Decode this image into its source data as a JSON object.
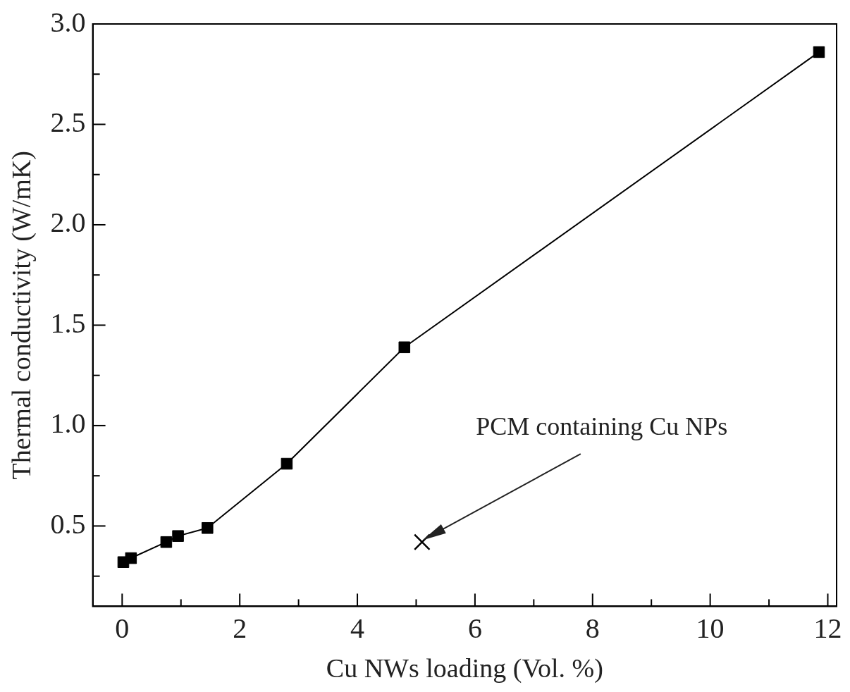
{
  "chart_data": {
    "type": "line",
    "xlabel": "Cu NWs loading (Vol. %)",
    "ylabel": "Thermal conductivity (W/mK)",
    "series": [
      {
        "type": "line",
        "color": "#000000",
        "marker": "square",
        "x": [
          0.02,
          0.15,
          0.75,
          0.95,
          1.45,
          2.8,
          4.8,
          11.85
        ],
        "values": [
          0.32,
          0.34,
          0.42,
          0.45,
          0.49,
          0.81,
          1.39,
          2.86
        ]
      },
      {
        "type": "scatter",
        "color": "#000000",
        "marker": "cross",
        "x": [
          5.1
        ],
        "values": [
          0.42
        ]
      }
    ],
    "xlim": [
      -0.5,
      12.15
    ],
    "xticks": [
      0,
      {
        "value": 1,
        "label": null
      },
      2,
      {
        "value": 3,
        "label": null
      },
      4,
      {
        "value": 5,
        "label": null
      },
      6,
      {
        "value": 7,
        "label": null
      },
      8,
      {
        "value": 9,
        "label": null
      },
      10,
      {
        "value": 11,
        "label": null
      },
      12
    ],
    "ylim": [
      0.1,
      3.0
    ],
    "yticks": [
      {
        "value": 0.25,
        "label": null
      },
      {
        "value": 0.5,
        "label": "0.5"
      },
      {
        "value": 0.75,
        "label": null
      },
      {
        "value": 1.0,
        "label": "1.0"
      },
      {
        "value": 1.25,
        "label": null
      },
      {
        "value": 1.5,
        "label": "1.5"
      },
      {
        "value": 1.75,
        "label": null
      },
      {
        "value": 2.0,
        "label": "2.0"
      },
      {
        "value": 2.25,
        "label": null
      },
      {
        "value": 2.5,
        "label": "2.5"
      },
      {
        "value": 2.75,
        "label": null
      },
      {
        "value": 3.0,
        "label": "3.0"
      }
    ],
    "annotations": [
      "PCM containing Cu NPs"
    ],
    "grid": false,
    "legend": false,
    "line_style": "solid"
  }
}
